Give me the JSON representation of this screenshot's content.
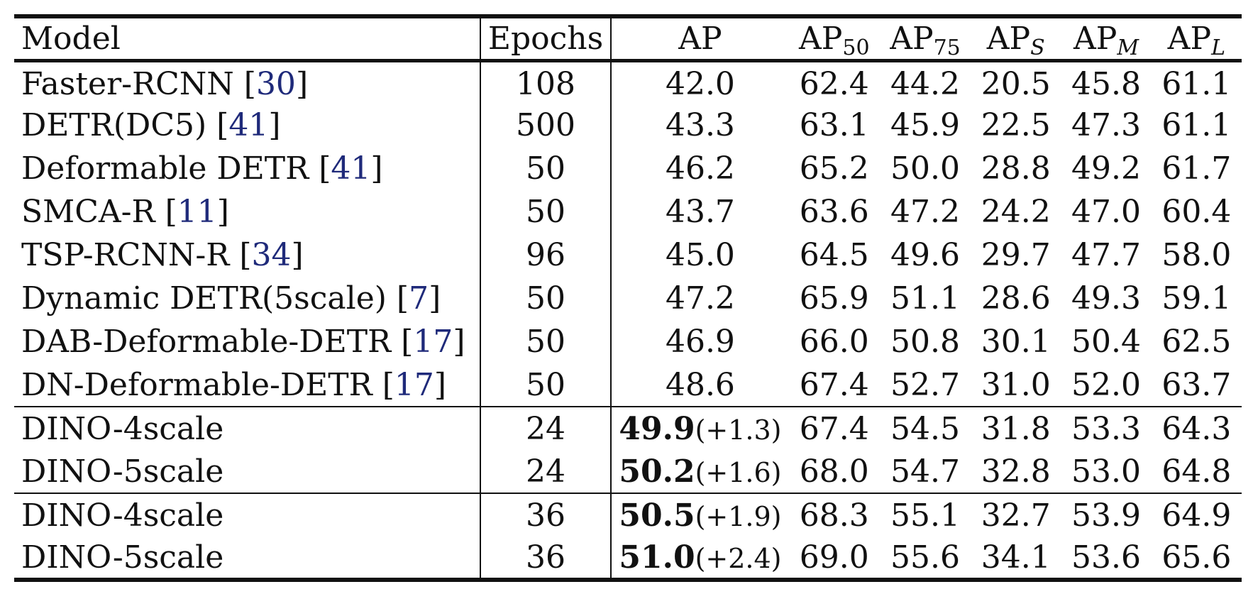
{
  "table": {
    "headers": {
      "model": "Model",
      "epochs": "Epochs",
      "ap": "AP",
      "ap50": {
        "base": "AP",
        "sub": "50"
      },
      "ap75": {
        "base": "AP",
        "sub": "75"
      },
      "aps": {
        "base": "AP",
        "sub": "S"
      },
      "apm": {
        "base": "AP",
        "sub": "M"
      },
      "apl": {
        "base": "AP",
        "sub": "L"
      }
    },
    "baselines": [
      {
        "name": "Faster-RCNN ",
        "ref": "30",
        "epochs": "108",
        "ap": "42.0",
        "ap50": "62.4",
        "ap75": "44.2",
        "aps": "20.5",
        "apm": "45.8",
        "apl": "61.1"
      },
      {
        "name": "DETR(DC5) ",
        "ref": "41",
        "epochs": "500",
        "ap": "43.3",
        "ap50": "63.1",
        "ap75": "45.9",
        "aps": "22.5",
        "apm": "47.3",
        "apl": "61.1"
      },
      {
        "name": "Deformable DETR ",
        "ref": "41",
        "epochs": "50",
        "ap": "46.2",
        "ap50": "65.2",
        "ap75": "50.0",
        "aps": "28.8",
        "apm": "49.2",
        "apl": "61.7"
      },
      {
        "name": "SMCA-R ",
        "ref": "11",
        "epochs": "50",
        "ap": "43.7",
        "ap50": "63.6",
        "ap75": "47.2",
        "aps": "24.2",
        "apm": "47.0",
        "apl": "60.4"
      },
      {
        "name": "TSP-RCNN-R ",
        "ref": "34",
        "epochs": "96",
        "ap": "45.0",
        "ap50": "64.5",
        "ap75": "49.6",
        "aps": "29.7",
        "apm": "47.7",
        "apl": "58.0"
      },
      {
        "name": "Dynamic DETR(5scale) ",
        "ref": "7",
        "epochs": "50",
        "ap": "47.2",
        "ap50": "65.9",
        "ap75": "51.1",
        "aps": "28.6",
        "apm": "49.3",
        "apl": "59.1"
      },
      {
        "name": "DAB-Deformable-DETR ",
        "ref": "17",
        "epochs": "50",
        "ap": "46.9",
        "ap50": "66.0",
        "ap75": "50.8",
        "aps": "30.1",
        "apm": "50.4",
        "apl": "62.5"
      },
      {
        "name": "DN-Deformable-DETR ",
        "ref": "17",
        "epochs": "50",
        "ap": "48.6",
        "ap50": "67.4",
        "ap75": "52.7",
        "aps": "31.0",
        "apm": "52.0",
        "apl": "63.7"
      }
    ],
    "dino_24": [
      {
        "name": "DINO-4scale",
        "epochs": "24",
        "ap": "49.9",
        "delta": "(+1.3)",
        "ap50": "67.4",
        "ap75": "54.5",
        "aps": "31.8",
        "apm": "53.3",
        "apl": "64.3"
      },
      {
        "name": "DINO-5scale",
        "epochs": "24",
        "ap": "50.2",
        "delta": "(+1.6)",
        "ap50": "68.0",
        "ap75": "54.7",
        "aps": "32.8",
        "apm": "53.0",
        "apl": "64.8"
      }
    ],
    "dino_36": [
      {
        "name": "DINO-4scale",
        "epochs": "36",
        "ap": "50.5",
        "delta": "(+1.9)",
        "ap50": "68.3",
        "ap75": "55.1",
        "aps": "32.7",
        "apm": "53.9",
        "apl": "64.9"
      },
      {
        "name": "DINO-5scale",
        "epochs": "36",
        "ap": "51.0",
        "delta": "(+2.4)",
        "ap50": "69.0",
        "ap75": "55.6",
        "aps": "34.1",
        "apm": "53.6",
        "apl": "65.6"
      }
    ]
  }
}
